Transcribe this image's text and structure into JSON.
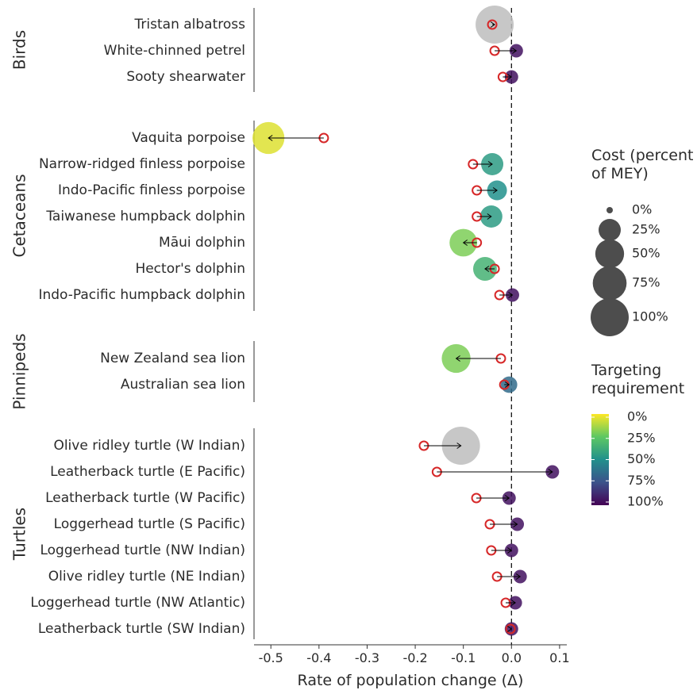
{
  "chart_data": {
    "type": "scatter",
    "xlabel": "Rate of population change (Δ)",
    "xlim": [
      -0.535,
      0.115
    ],
    "x_ticks": [
      -0.5,
      -0.4,
      -0.3,
      -0.2,
      -0.1,
      0.0,
      0.1
    ],
    "x_tick_labels": [
      "-0.5",
      "-0.4",
      "-0.3",
      "-0.2",
      "-0.1",
      "0.0",
      "0.1"
    ],
    "reference_line_x": 0,
    "groups": [
      {
        "name": "Birds",
        "species": [
          {
            "label": "Tristan albatross",
            "current": -0.04,
            "with_measures": -0.035,
            "cost_pct": 100,
            "targeting_pct": null
          },
          {
            "label": "White-chinned petrel",
            "current": -0.035,
            "with_measures": 0.01,
            "cost_pct": 5,
            "targeting_pct": 5
          },
          {
            "label": "Sooty shearwater",
            "current": -0.018,
            "with_measures": 0.0,
            "cost_pct": 5,
            "targeting_pct": 5
          }
        ]
      },
      {
        "name": "Cetaceans",
        "species": [
          {
            "label": "Vaquita porpoise",
            "current": -0.39,
            "with_measures": -0.505,
            "cost_pct": 65,
            "targeting_pct": 95
          },
          {
            "label": "Narrow-ridged finless porpoise",
            "current": -0.08,
            "with_measures": -0.04,
            "cost_pct": 25,
            "targeting_pct": 55
          },
          {
            "label": "Indo-Pacific finless porpoise",
            "current": -0.072,
            "with_measures": -0.03,
            "cost_pct": 18,
            "targeting_pct": 50
          },
          {
            "label": "Taiwanese humpback dolphin",
            "current": -0.072,
            "with_measures": -0.042,
            "cost_pct": 25,
            "targeting_pct": 55
          },
          {
            "label": "Māui dolphin",
            "current": -0.072,
            "with_measures": -0.1,
            "cost_pct": 45,
            "targeting_pct": 80
          },
          {
            "label": "Hector's dolphin",
            "current": -0.035,
            "with_measures": -0.055,
            "cost_pct": 30,
            "targeting_pct": 65
          },
          {
            "label": "Indo-Pacific humpback dolphin",
            "current": -0.025,
            "with_measures": 0.002,
            "cost_pct": 5,
            "targeting_pct": 5
          }
        ]
      },
      {
        "name": "Pinnipeds",
        "species": [
          {
            "label": "New Zealand sea lion",
            "current": -0.022,
            "with_measures": -0.115,
            "cost_pct": 50,
            "targeting_pct": 80
          },
          {
            "label": "Australian sea lion",
            "current": -0.015,
            "with_measures": -0.005,
            "cost_pct": 10,
            "targeting_pct": 35
          }
        ]
      },
      {
        "name": "Turtles",
        "species": [
          {
            "label": "Olive ridley turtle (W Indian)",
            "current": -0.182,
            "with_measures": -0.105,
            "cost_pct": 100,
            "targeting_pct": null
          },
          {
            "label": "Leatherback turtle (E Pacific)",
            "current": -0.155,
            "with_measures": 0.085,
            "cost_pct": 5,
            "targeting_pct": 5
          },
          {
            "label": "Leatherback turtle (W Pacific)",
            "current": -0.073,
            "with_measures": -0.005,
            "cost_pct": 5,
            "targeting_pct": 5
          },
          {
            "label": "Loggerhead turtle (S Pacific)",
            "current": -0.045,
            "with_measures": 0.012,
            "cost_pct": 5,
            "targeting_pct": 5
          },
          {
            "label": "Loggerhead turtle (NW Indian)",
            "current": -0.042,
            "with_measures": 0.0,
            "cost_pct": 5,
            "targeting_pct": 5
          },
          {
            "label": "Olive ridley turtle (NE Indian)",
            "current": -0.03,
            "with_measures": 0.018,
            "cost_pct": 5,
            "targeting_pct": 5
          },
          {
            "label": "Loggerhead turtle (NW Atlantic)",
            "current": -0.012,
            "with_measures": 0.008,
            "cost_pct": 5,
            "targeting_pct": 5
          },
          {
            "label": "Leatherback turtle (SW Indian)",
            "current": -0.002,
            "with_measures": 0.0,
            "cost_pct": 5,
            "targeting_pct": 5
          }
        ]
      }
    ],
    "legend_size": {
      "title": "Cost (percent of MEY)",
      "title_lines": [
        "Cost (percent",
        "of MEY)"
      ],
      "entries": [
        {
          "label": "0%",
          "value": 0
        },
        {
          "label": "25%",
          "value": 25
        },
        {
          "label": "50%",
          "value": 50
        },
        {
          "label": "75%",
          "value": 75
        },
        {
          "label": "100%",
          "value": 100
        }
      ]
    },
    "legend_color": {
      "title": "Targeting requirement",
      "title_lines": [
        "Targeting",
        "requirement"
      ],
      "labels": [
        "0%",
        "25%",
        "50%",
        "75%",
        "100%"
      ],
      "colormap": [
        "#440154",
        "#3b528b",
        "#21908c",
        "#5dc863",
        "#fde725"
      ]
    },
    "colors": {
      "open_circle": "#d62728",
      "na_fill": "#bdbdbd",
      "legend_size_fill": "#4d4d4d",
      "line": "#000000"
    }
  }
}
